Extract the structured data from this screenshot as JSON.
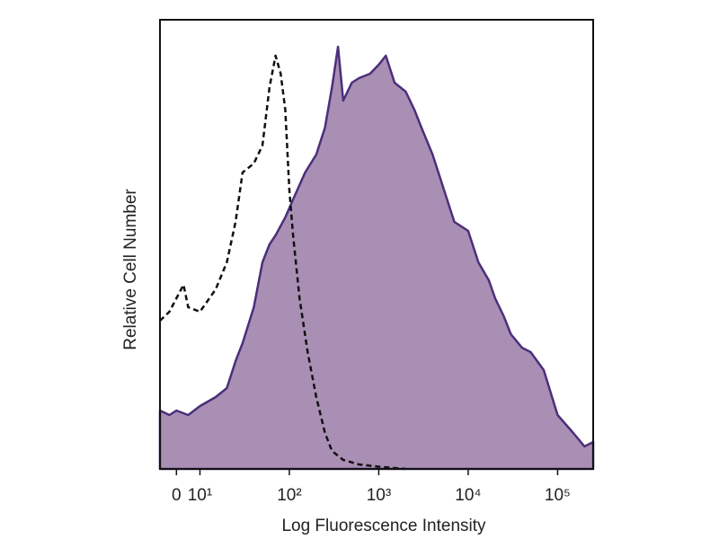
{
  "chart_data": {
    "type": "histogram",
    "xlabel": "Log Fluorescence Intensity",
    "ylabel": "Relative Cell Number",
    "xscale": "biexponential",
    "xlim": [
      -7,
      250000
    ],
    "ylim": [
      0,
      100
    ],
    "xticks": [
      0,
      {
        "value": 10,
        "label": "10¹"
      },
      {
        "value": 100,
        "label": "10²"
      },
      {
        "value": 1000,
        "label": "10³"
      },
      {
        "value": 10000,
        "label": "10⁴"
      },
      {
        "value": 100000,
        "label": "10⁵"
      }
    ],
    "series": [
      {
        "color": "#4b2f7a",
        "fill": "#a98fb4",
        "style": "solid",
        "x": [
          -7,
          -3,
          0,
          5,
          10,
          15,
          20,
          25,
          30,
          40,
          50,
          60,
          70,
          90,
          110,
          150,
          200,
          250,
          300,
          350,
          400,
          500,
          600,
          800,
          1000,
          1200,
          1500,
          2000,
          2500,
          3000,
          4000,
          5000,
          7000,
          10000,
          13000,
          17000,
          20000,
          25000,
          30000,
          40000,
          50000,
          70000,
          100000,
          150000,
          200000,
          250000
        ],
        "values": [
          13,
          12,
          13,
          12,
          14,
          16,
          18,
          24,
          28,
          36,
          46,
          50,
          52,
          56,
          60,
          66,
          70,
          76,
          85,
          94,
          82,
          86,
          87,
          88,
          90,
          92,
          86,
          84,
          80,
          76,
          70,
          64,
          55,
          53,
          46,
          42,
          38,
          34,
          30,
          27,
          26,
          22,
          12,
          8,
          5,
          6
        ]
      },
      {
        "color": "#111111",
        "style": "dashed",
        "x": [
          -7,
          -3,
          0,
          3,
          5,
          10,
          15,
          20,
          25,
          30,
          40,
          50,
          60,
          70,
          80,
          90,
          100,
          110,
          130,
          160,
          200,
          250,
          300,
          400,
          600,
          1000,
          2000
        ],
        "values": [
          33,
          35,
          38,
          41,
          36,
          35,
          40,
          46,
          55,
          66,
          68,
          72,
          85,
          92,
          88,
          80,
          62,
          52,
          38,
          26,
          16,
          8,
          4,
          2,
          1,
          0.5,
          0
        ]
      }
    ]
  }
}
